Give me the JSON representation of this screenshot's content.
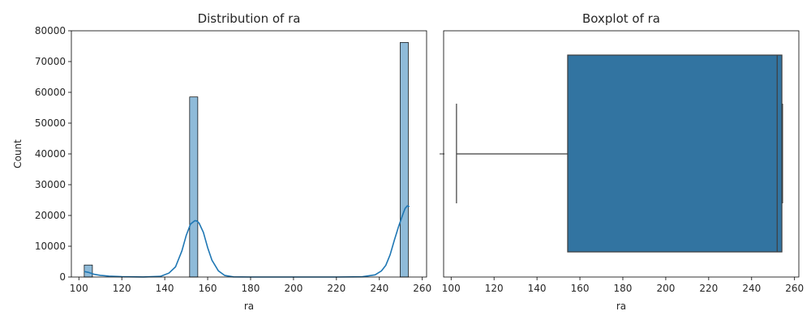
{
  "chart_data": [
    {
      "type": "bar",
      "subtype": "histogram",
      "title": "Distribution of ra",
      "xlabel": "ra",
      "ylabel": "Count",
      "xlim": [
        96.5,
        262
      ],
      "ylim": [
        0,
        80000
      ],
      "xticks": [
        100,
        120,
        140,
        160,
        180,
        200,
        220,
        240,
        260
      ],
      "yticks": [
        0,
        10000,
        20000,
        30000,
        40000,
        50000,
        60000,
        70000,
        80000
      ],
      "bin_edges": [
        102.5,
        106.3,
        110.1,
        113.8,
        117.6,
        121.4,
        125.2,
        128.9,
        132.7,
        136.5,
        140.3,
        144.0,
        147.8,
        151.6,
        155.4,
        159.1,
        162.9,
        166.7,
        170.5,
        174.2,
        178.0,
        181.8,
        185.6,
        189.3,
        193.1,
        196.9,
        200.7,
        204.4,
        208.2,
        212.0,
        215.8,
        219.5,
        223.3,
        227.1,
        230.9,
        234.6,
        238.4,
        242.2,
        246.0,
        249.7,
        253.5
      ],
      "counts": [
        3900,
        0,
        0,
        0,
        0,
        0,
        0,
        0,
        0,
        0,
        0,
        0,
        0,
        58500,
        0,
        0,
        0,
        0,
        0,
        0,
        0,
        0,
        0,
        0,
        0,
        0,
        0,
        0,
        0,
        0,
        0,
        0,
        0,
        0,
        0,
        0,
        0,
        0,
        0,
        76200
      ],
      "bar_color": "#1f77b4",
      "kde": {
        "x": [
          102.5,
          104.5,
          107,
          110,
          114,
          120,
          130,
          138,
          142,
          145,
          148,
          150,
          152,
          154,
          155,
          156,
          158,
          160,
          162,
          165,
          168,
          172,
          180,
          200,
          220,
          232,
          238,
          241,
          243,
          245,
          247,
          249,
          251,
          252,
          253,
          254
        ],
        "y": [
          1800,
          1500,
          900,
          550,
          300,
          100,
          20,
          200,
          1300,
          3300,
          8500,
          13500,
          17200,
          18300,
          18200,
          17500,
          14500,
          9500,
          5500,
          2000,
          500,
          60,
          5,
          0,
          5,
          80,
          700,
          2000,
          3800,
          7200,
          12000,
          16500,
          20500,
          22300,
          23100,
          22900
        ],
        "color": "#1f77b4"
      }
    },
    {
      "type": "boxplot",
      "title": "Boxplot of ra",
      "xlabel": "ra",
      "xlim": [
        96.5,
        262
      ],
      "xticks": [
        100,
        120,
        140,
        160,
        180,
        200,
        220,
        240,
        260
      ],
      "whisker_low": 102.5,
      "q1": 154.3,
      "median": 251.9,
      "q3": 254.1,
      "whisker_high": 254.4,
      "box_color": "#3274a1"
    }
  ]
}
